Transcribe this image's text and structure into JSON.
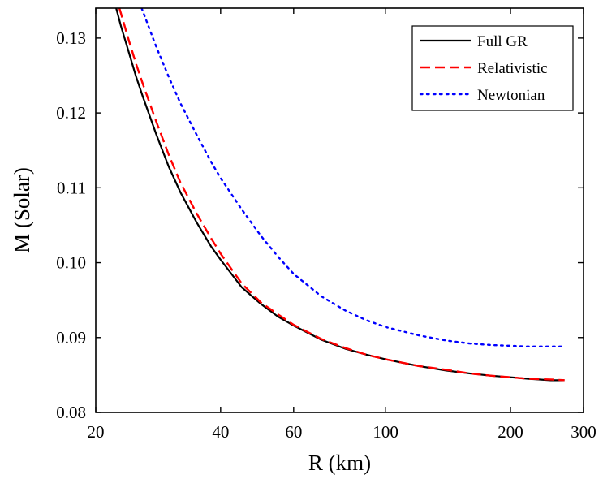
{
  "chart_data": {
    "type": "line",
    "title": "",
    "xlabel": "R (km)",
    "ylabel": "M (Solar)",
    "xscale": "log",
    "xlim": [
      20,
      300
    ],
    "ylim": [
      0.08,
      0.134
    ],
    "xticks": [
      {
        "value": 20,
        "label": "20"
      },
      {
        "value": 40,
        "label": "40"
      },
      {
        "value": 60,
        "label": "60"
      },
      {
        "value": 100,
        "label": "100"
      },
      {
        "value": 200,
        "label": "200"
      },
      {
        "value": 300,
        "label": "300"
      }
    ],
    "yticks": [
      {
        "value": 0.08,
        "label": "0.08"
      },
      {
        "value": 0.09,
        "label": "0.09"
      },
      {
        "value": 0.1,
        "label": "0.10"
      },
      {
        "value": 0.11,
        "label": "0.11"
      },
      {
        "value": 0.12,
        "label": "0.12"
      },
      {
        "value": 0.13,
        "label": "0.13"
      }
    ],
    "grid": false,
    "legend_position": "top-right",
    "series": [
      {
        "name": "Full GR",
        "color": "#000000",
        "style": "solid",
        "x": [
          22.4,
          23,
          24,
          25,
          26,
          28,
          30,
          32,
          35,
          38,
          40,
          45,
          50,
          55,
          60,
          70,
          80,
          90,
          100,
          120,
          140,
          160,
          180,
          200,
          220,
          250,
          270
        ],
        "y": [
          0.134,
          0.1316,
          0.1282,
          0.1249,
          0.1221,
          0.1171,
          0.1128,
          0.1094,
          0.1054,
          0.1021,
          0.1004,
          0.0967,
          0.0945,
          0.0928,
          0.0916,
          0.0897,
          0.0885,
          0.0877,
          0.0871,
          0.0862,
          0.0856,
          0.0852,
          0.0849,
          0.0847,
          0.0845,
          0.0843,
          0.0843
        ]
      },
      {
        "name": "Relativistic",
        "color": "#ff0000",
        "style": "dashed",
        "x": [
          22.8,
          23,
          24,
          25,
          26,
          28,
          30,
          32,
          35,
          38,
          40,
          45,
          50,
          55,
          60,
          70,
          80,
          90,
          100,
          120,
          140,
          160,
          180,
          200,
          220,
          250,
          270
        ],
        "y": [
          0.134,
          0.1333,
          0.1298,
          0.1266,
          0.1238,
          0.1188,
          0.1144,
          0.1107,
          0.1066,
          0.1032,
          0.1012,
          0.0972,
          0.0947,
          0.0931,
          0.0917,
          0.0898,
          0.0886,
          0.0877,
          0.0871,
          0.0862,
          0.0857,
          0.0852,
          0.0849,
          0.0847,
          0.0845,
          0.0844,
          0.0843
        ]
      },
      {
        "name": "Newtonian",
        "color": "#0000ff",
        "style": "dotted",
        "x": [
          25.8,
          27,
          28,
          30,
          32,
          35,
          38,
          40,
          45,
          50,
          55,
          60,
          70,
          80,
          90,
          100,
          120,
          140,
          160,
          180,
          200,
          220,
          250,
          270
        ],
        "y": [
          0.134,
          0.1311,
          0.1288,
          0.1248,
          0.1213,
          0.1171,
          0.1134,
          0.1113,
          0.1071,
          0.1036,
          0.1008,
          0.0985,
          0.0955,
          0.0936,
          0.0923,
          0.0914,
          0.0903,
          0.0896,
          0.0892,
          0.089,
          0.0889,
          0.0888,
          0.0888,
          0.0888
        ]
      }
    ]
  }
}
